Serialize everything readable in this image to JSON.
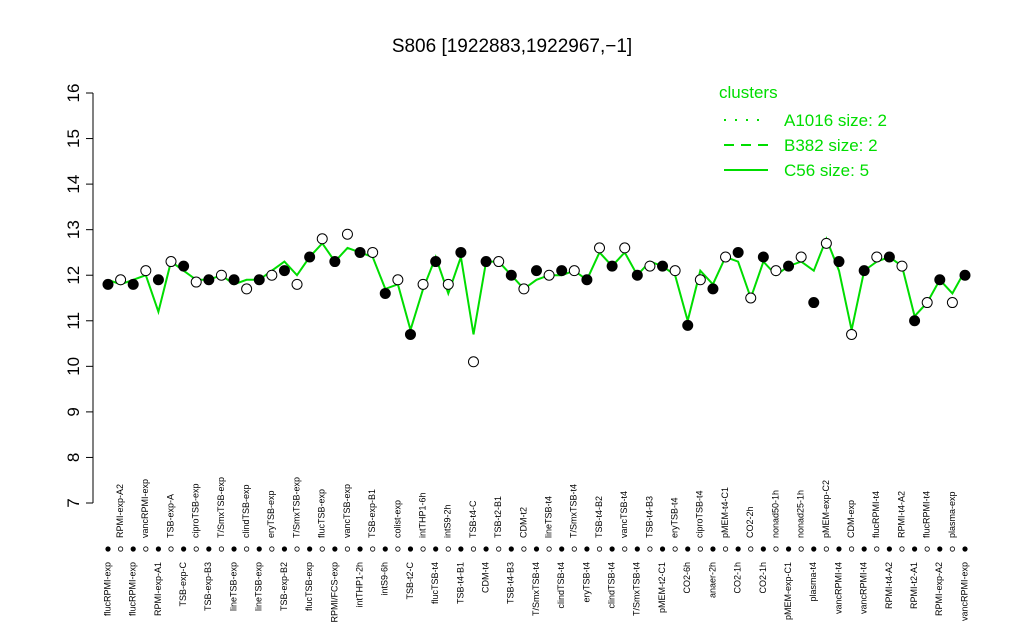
{
  "chart_data": {
    "type": "scatter-line",
    "title": "S806 [1922883,1922967,−1]",
    "categories": [
      "flucRPMI-exp",
      "RPMI-exp-A2",
      "flucRPMI-exp",
      "vancRPMI-exp",
      "RPMI-exp-A1",
      "TSB-exp-A",
      "TSB-exp-C",
      "ciproTSB-exp",
      "TSB-exp-B3",
      "T/SmxTSB-exp",
      "lineTSB-exp",
      "clindTSB-exp",
      "lineTSB-exp",
      "eryTSB-exp",
      "TSB-exp-B2",
      "T/SmxTSB-exp",
      "flucTSB-exp",
      "flucTSB-exp",
      "RPMI/FCS-exp",
      "vancTSB-exp",
      "intTHP1-2h",
      "TSB-exp-B1",
      "intS9-6h",
      "colist-exp",
      "TSB-t2-C",
      "intTHP1-6h",
      "flucTSB-t4",
      "intS9-2h",
      "TSB-t4-B1",
      "TSB-t4-C",
      "CDM-t4",
      "TSB-t2-B1",
      "TSB-t4-B3",
      "CDM-t2",
      "T/SmxTSB-t4",
      "lineTSB-t4",
      "clindTSB-t4",
      "T/SmxTSB-t4",
      "eryTSB-t4",
      "TSB-t4-B2",
      "clindTSB-t4",
      "vancTSB-t4",
      "T/SmxTSB-t4",
      "TSB-t4-B3",
      "pMEM-t2-C1",
      "eryTSB-t4",
      "CO2-6h",
      "ciproTSB-t4",
      "anaer-2h",
      "pMEM-t4-C1",
      "CO2-1h",
      "CO2-2h",
      "CO2-1h",
      "nonad50-1h",
      "pMEM-exp-C1",
      "nonad25-1h",
      "plasma-t4",
      "pMEM-exp-C2",
      "vancRPMI-t4",
      "CDM-exp",
      "vancRPMI-t4",
      "flucRPMI-t4",
      "RPMI-t4-A2",
      "RPMI-t4-A2",
      "RPMI-t2-A1",
      "flucRPMI-t4",
      "RPMI-exp-A2",
      "plasma-exp",
      "vancRPMI-exp"
    ],
    "values": [
      11.8,
      11.9,
      11.8,
      12.1,
      11.9,
      12.3,
      12.2,
      11.85,
      11.9,
      12.0,
      11.9,
      11.7,
      11.9,
      12.0,
      12.1,
      11.8,
      12.4,
      12.8,
      12.3,
      12.9,
      12.5,
      12.5,
      11.6,
      11.9,
      10.7,
      11.8,
      12.3,
      11.8,
      12.5,
      10.1,
      12.3,
      12.3,
      12.0,
      11.7,
      12.1,
      12.0,
      12.1,
      12.1,
      11.9,
      12.6,
      12.2,
      12.6,
      12.0,
      12.2,
      12.2,
      12.1,
      10.9,
      11.9,
      11.7,
      12.4,
      12.5,
      11.5,
      12.4,
      12.1,
      12.2,
      12.4,
      11.4,
      12.7,
      12.3,
      10.7,
      12.1,
      12.4,
      12.4,
      12.2,
      11.0,
      11.4,
      11.9,
      11.4,
      12.0
    ],
    "point_fills": [
      "#000000",
      "#ffffff"
    ],
    "series": [
      {
        "name": "C56 size: 5",
        "color": "#00dd00",
        "values": [
          11.9,
          11.8,
          11.9,
          12.0,
          11.2,
          12.3,
          12.1,
          11.9,
          11.9,
          12.0,
          11.8,
          11.9,
          11.9,
          12.1,
          12.3,
          12.0,
          12.4,
          12.7,
          12.3,
          12.6,
          12.5,
          12.4,
          11.7,
          11.8,
          10.8,
          11.7,
          12.4,
          11.6,
          12.4,
          10.7,
          12.3,
          12.3,
          12.0,
          11.7,
          11.9,
          12.0,
          12.0,
          12.1,
          11.9,
          12.5,
          12.2,
          12.5,
          12.0,
          12.3,
          12.2,
          12.0,
          11.0,
          12.1,
          11.8,
          12.4,
          12.3,
          11.5,
          12.3,
          12.0,
          12.2,
          12.3,
          12.1,
          12.8,
          12.1,
          10.8,
          12.1,
          12.3,
          12.4,
          12.2,
          11.1,
          11.4,
          11.9,
          11.6,
          12.1
        ]
      }
    ],
    "legend": {
      "title": "clusters",
      "entries": [
        {
          "name": "A1016 size: 2",
          "dash": "2,9"
        },
        {
          "name": "B382 size: 2",
          "dash": "10,7"
        },
        {
          "name": "C56 size: 5",
          "dash": "none"
        }
      ]
    },
    "ylim": [
      7,
      16
    ],
    "yticks": [
      7,
      8,
      9,
      10,
      11,
      12,
      13,
      14,
      15,
      16
    ]
  }
}
